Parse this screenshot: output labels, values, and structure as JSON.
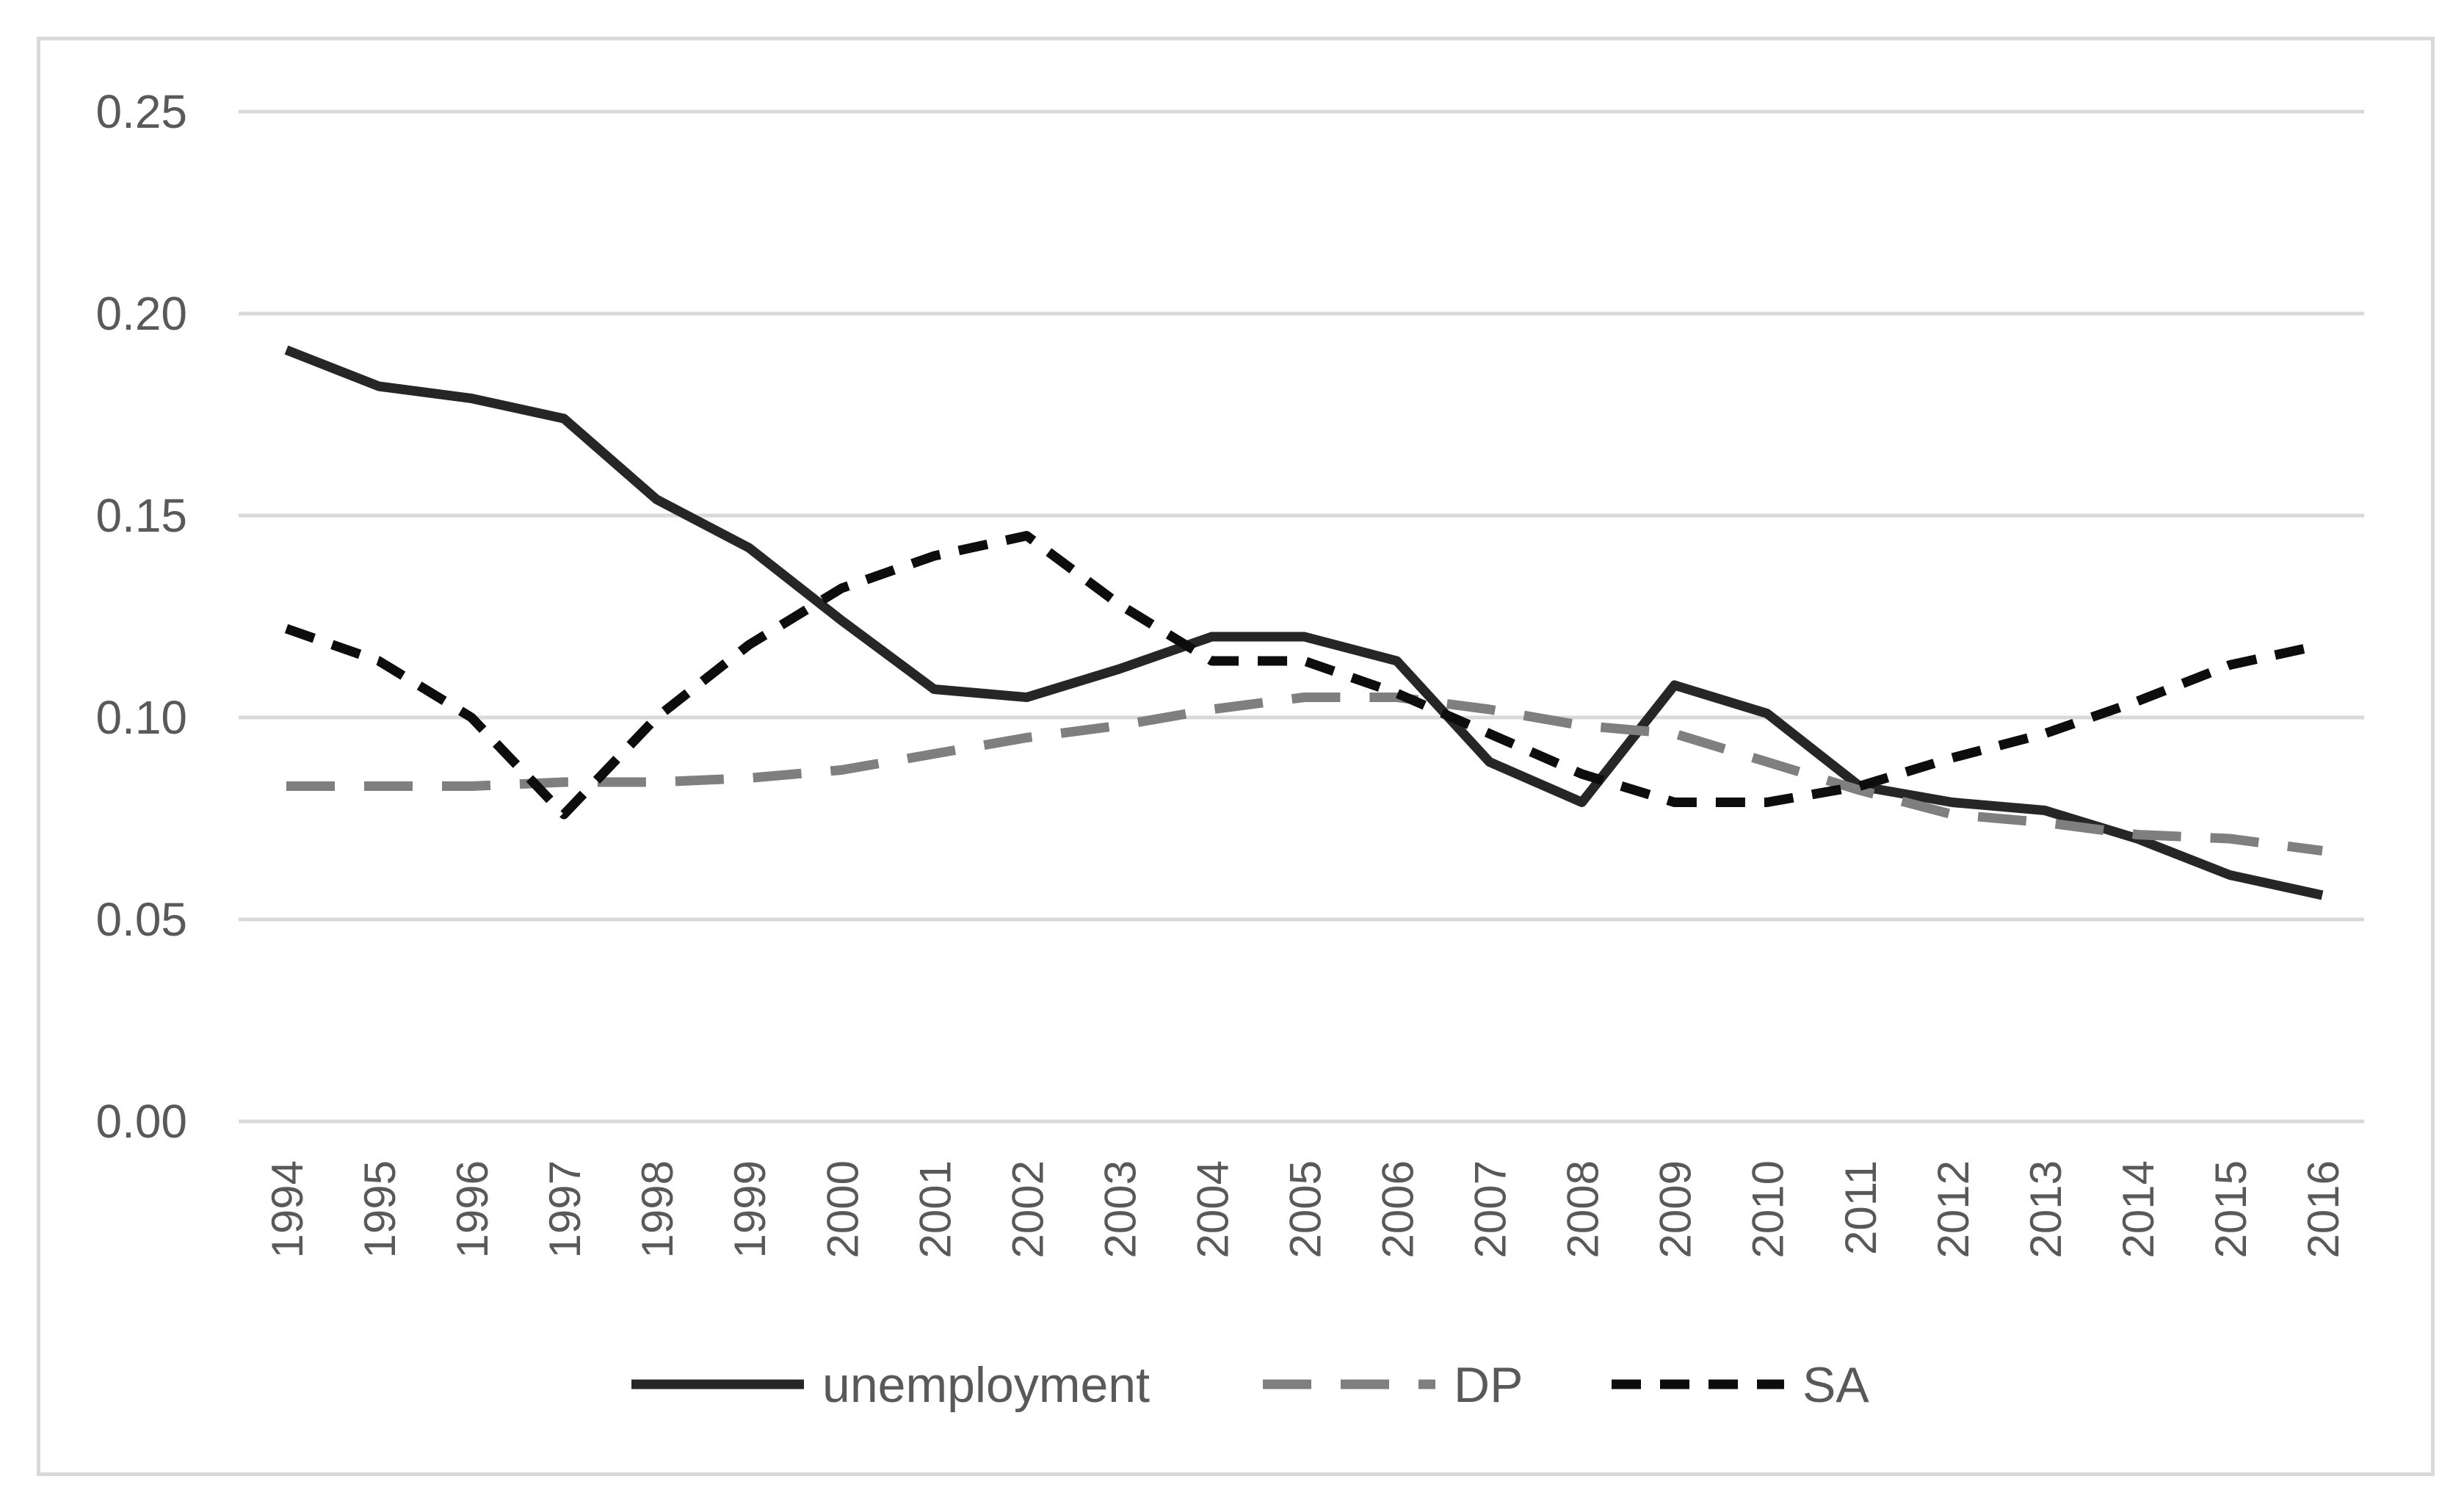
{
  "chart_data": {
    "type": "line",
    "title": "",
    "xlabel": "",
    "ylabel": "",
    "ylim": [
      0,
      0.25
    ],
    "yticks": [
      "0.00",
      "0.05",
      "0.10",
      "0.15",
      "0.20",
      "0.25"
    ],
    "yticks_values": [
      0,
      0.05,
      0.1,
      0.15,
      0.2,
      0.25
    ],
    "grid": true,
    "legend_position": "bottom",
    "x": [
      "1994",
      "1995",
      "1996",
      "1997",
      "1998",
      "1999",
      "2000",
      "2001",
      "2002",
      "2003",
      "2004",
      "2005",
      "2006",
      "2007",
      "2008",
      "2009",
      "2010",
      "2011",
      "2012",
      "2013",
      "2014",
      "2015",
      "2016"
    ],
    "series": [
      {
        "name": "unemployment",
        "style": "solid",
        "color": "#262626",
        "values": [
          0.191,
          0.182,
          0.179,
          0.174,
          0.154,
          0.142,
          0.124,
          0.107,
          0.105,
          0.112,
          0.12,
          0.12,
          0.114,
          0.089,
          0.079,
          0.108,
          0.101,
          0.083,
          0.079,
          0.077,
          0.07,
          0.061,
          0.056
        ]
      },
      {
        "name": "DP",
        "style": "long-dash",
        "color": "#7f7f7f",
        "values": [
          0.083,
          0.083,
          0.083,
          0.084,
          0.084,
          0.085,
          0.087,
          0.091,
          0.095,
          0.098,
          0.102,
          0.105,
          0.105,
          0.102,
          0.098,
          0.096,
          0.089,
          0.082,
          0.076,
          0.074,
          0.071,
          0.07,
          0.067
        ]
      },
      {
        "name": "SA",
        "style": "short-dash",
        "color": "#0d0d0d",
        "values": [
          0.122,
          0.114,
          0.1,
          0.076,
          0.1,
          0.118,
          0.132,
          0.14,
          0.145,
          0.128,
          0.114,
          0.114,
          0.106,
          0.096,
          0.086,
          0.079,
          0.079,
          0.083,
          0.09,
          0.096,
          0.104,
          0.113,
          0.118
        ]
      }
    ]
  }
}
